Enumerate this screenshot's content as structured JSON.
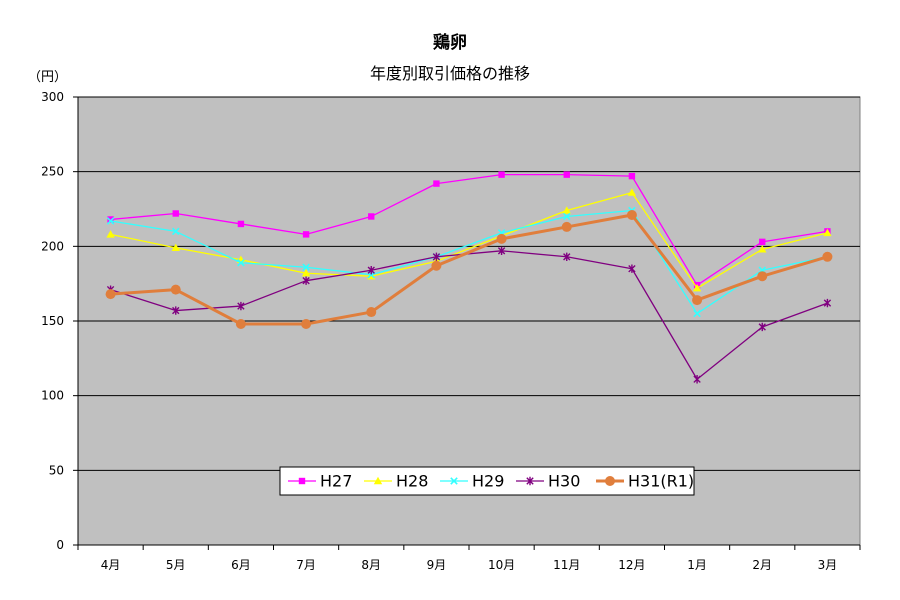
{
  "chart_data": {
    "type": "line",
    "title": "鶏卵",
    "subtitle": "年度別取引価格の推移",
    "ylabel": "（円）",
    "xlabel": "",
    "categories": [
      "4月",
      "5月",
      "6月",
      "7月",
      "8月",
      "9月",
      "10月",
      "11月",
      "12月",
      "1月",
      "2月",
      "3月"
    ],
    "ylim": [
      0,
      300
    ],
    "yticks": [
      0,
      50,
      100,
      150,
      200,
      250,
      300
    ],
    "grid": true,
    "legend_position": "bottom-center",
    "series": [
      {
        "name": "H27",
        "color": "#ff00ff",
        "marker": "square",
        "values": [
          218,
          222,
          215,
          208,
          220,
          242,
          248,
          248,
          247,
          174,
          203,
          210
        ]
      },
      {
        "name": "H28",
        "color": "#ffff00",
        "marker": "triangle",
        "values": [
          208,
          199,
          191,
          182,
          180,
          190,
          207,
          224,
          236,
          172,
          198,
          209
        ]
      },
      {
        "name": "H29",
        "color": "#33ffff",
        "marker": "x",
        "values": [
          217,
          210,
          189,
          186,
          181,
          193,
          209,
          220,
          224,
          155,
          184,
          193
        ]
      },
      {
        "name": "H30",
        "color": "#800080",
        "marker": "star",
        "values": [
          171,
          157,
          160,
          177,
          184,
          193,
          197,
          193,
          185,
          111,
          146,
          162
        ]
      },
      {
        "name": "H31(R1)",
        "color": "#e07e3c",
        "marker": "circle",
        "values": [
          168,
          171,
          148,
          148,
          156,
          187,
          205,
          213,
          221,
          164,
          180,
          193
        ]
      }
    ]
  }
}
